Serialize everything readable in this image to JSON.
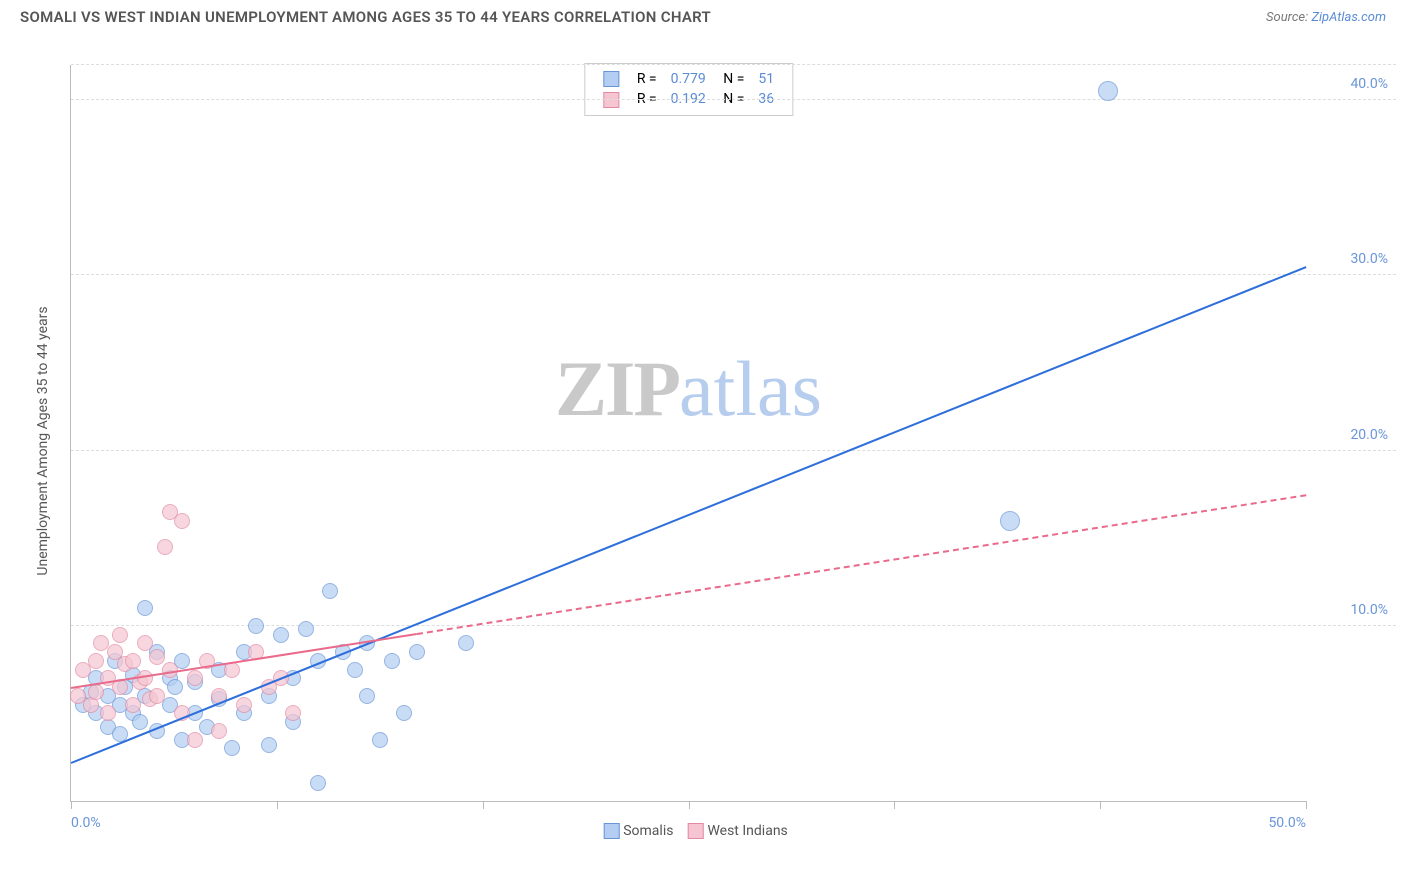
{
  "header": {
    "title": "SOMALI VS WEST INDIAN UNEMPLOYMENT AMONG AGES 35 TO 44 YEARS CORRELATION CHART",
    "source_prefix": "Source: ",
    "source_link": "ZipAtlas.com"
  },
  "chart": {
    "type": "scatter",
    "ylabel": "Unemployment Among Ages 35 to 44 years",
    "xlim": [
      0,
      50
    ],
    "ylim": [
      0,
      42
    ],
    "xticks": [
      0,
      8.33,
      16.67,
      25,
      33.33,
      41.67,
      50
    ],
    "xtick_labels_shown": {
      "0": "0.0%",
      "50": "50.0%"
    },
    "yticks": [
      10,
      20,
      30,
      40
    ],
    "ytick_labels": [
      "10.0%",
      "20.0%",
      "30.0%",
      "40.0%"
    ],
    "grid_color": "#dddddd",
    "axis_color": "#bbbbbb",
    "background_color": "#ffffff",
    "watermark": {
      "zip": "ZIP",
      "atlas": "atlas"
    },
    "series": [
      {
        "name": "Somalis",
        "color_fill": "#b3cef2",
        "color_stroke": "#6a95d8",
        "trend_color": "#2e6fdb",
        "R": "0.779",
        "N": "51",
        "trend": {
          "x1": 0,
          "y1": 2.2,
          "x2": 50,
          "y2": 30.5,
          "dashed": false,
          "solid_until_x": 50
        },
        "points": [
          [
            0.5,
            5.5
          ],
          [
            0.8,
            6.2
          ],
          [
            1.0,
            5.0
          ],
          [
            1.0,
            7.0
          ],
          [
            1.5,
            4.2
          ],
          [
            1.5,
            6.0
          ],
          [
            1.8,
            8.0
          ],
          [
            2.0,
            5.5
          ],
          [
            2.0,
            3.8
          ],
          [
            2.2,
            6.5
          ],
          [
            2.5,
            5.0
          ],
          [
            2.5,
            7.2
          ],
          [
            2.8,
            4.5
          ],
          [
            3.0,
            6.0
          ],
          [
            3.0,
            11.0
          ],
          [
            3.5,
            8.5
          ],
          [
            3.5,
            4.0
          ],
          [
            4.0,
            5.5
          ],
          [
            4.0,
            7.0
          ],
          [
            4.2,
            6.5
          ],
          [
            4.5,
            3.5
          ],
          [
            4.5,
            8.0
          ],
          [
            5.0,
            5.0
          ],
          [
            5.0,
            6.8
          ],
          [
            5.5,
            4.2
          ],
          [
            6.0,
            7.5
          ],
          [
            6.0,
            5.8
          ],
          [
            6.5,
            3.0
          ],
          [
            7.0,
            8.5
          ],
          [
            7.0,
            5.0
          ],
          [
            7.5,
            10.0
          ],
          [
            8.0,
            6.0
          ],
          [
            8.0,
            3.2
          ],
          [
            8.5,
            9.5
          ],
          [
            9.0,
            7.0
          ],
          [
            9.0,
            4.5
          ],
          [
            9.5,
            9.8
          ],
          [
            10.0,
            8.0
          ],
          [
            10.0,
            1.0
          ],
          [
            10.5,
            12.0
          ],
          [
            11.0,
            8.5
          ],
          [
            11.5,
            7.5
          ],
          [
            12.0,
            6.0
          ],
          [
            12.0,
            9.0
          ],
          [
            12.5,
            3.5
          ],
          [
            13.0,
            8.0
          ],
          [
            13.5,
            5.0
          ],
          [
            14.0,
            8.5
          ],
          [
            16.0,
            9.0
          ],
          [
            42.0,
            40.5
          ],
          [
            38.0,
            16.0
          ]
        ]
      },
      {
        "name": "West Indians",
        "color_fill": "#f5c6d2",
        "color_stroke": "#e38aa3",
        "trend_color": "#e96a8a",
        "R": "0.192",
        "N": "36",
        "trend": {
          "x1": 0,
          "y1": 6.5,
          "x2": 50,
          "y2": 17.5,
          "dashed": true,
          "solid_until_x": 14
        },
        "points": [
          [
            0.3,
            6.0
          ],
          [
            0.5,
            7.5
          ],
          [
            0.8,
            5.5
          ],
          [
            1.0,
            8.0
          ],
          [
            1.0,
            6.2
          ],
          [
            1.2,
            9.0
          ],
          [
            1.5,
            7.0
          ],
          [
            1.5,
            5.0
          ],
          [
            1.8,
            8.5
          ],
          [
            2.0,
            6.5
          ],
          [
            2.0,
            9.5
          ],
          [
            2.2,
            7.8
          ],
          [
            2.5,
            5.5
          ],
          [
            2.5,
            8.0
          ],
          [
            2.8,
            6.8
          ],
          [
            3.0,
            9.0
          ],
          [
            3.0,
            7.0
          ],
          [
            3.2,
            5.8
          ],
          [
            3.5,
            8.2
          ],
          [
            3.5,
            6.0
          ],
          [
            4.0,
            7.5
          ],
          [
            3.8,
            14.5
          ],
          [
            4.0,
            16.5
          ],
          [
            4.5,
            16.0
          ],
          [
            4.5,
            5.0
          ],
          [
            5.0,
            7.0
          ],
          [
            5.0,
            3.5
          ],
          [
            5.5,
            8.0
          ],
          [
            6.0,
            6.0
          ],
          [
            6.0,
            4.0
          ],
          [
            6.5,
            7.5
          ],
          [
            7.0,
            5.5
          ],
          [
            7.5,
            8.5
          ],
          [
            8.0,
            6.5
          ],
          [
            8.5,
            7.0
          ],
          [
            9.0,
            5.0
          ]
        ]
      }
    ],
    "legend_bottom": [
      {
        "label": "Somalis",
        "fill": "#b3cef2",
        "stroke": "#6a95d8"
      },
      {
        "label": "West Indians",
        "fill": "#f5c6d2",
        "stroke": "#e38aa3"
      }
    ]
  }
}
